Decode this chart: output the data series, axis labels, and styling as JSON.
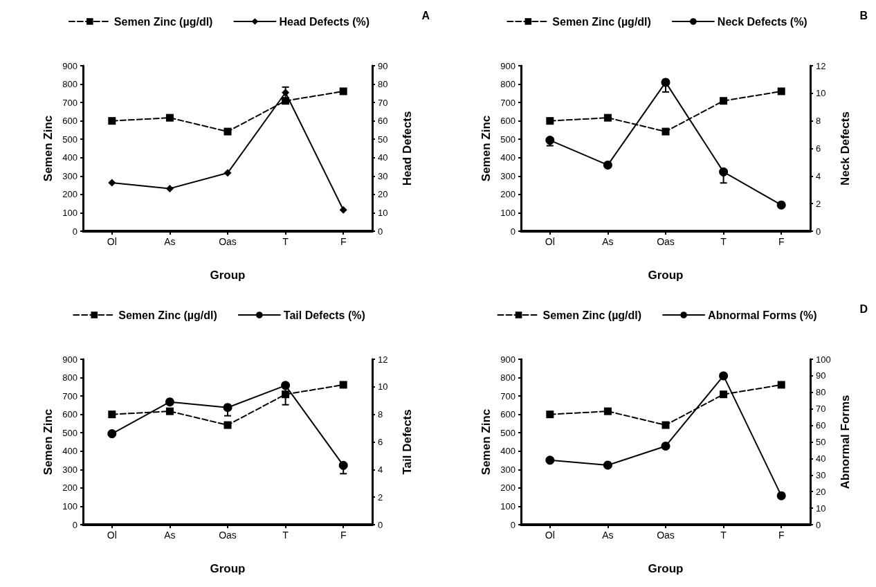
{
  "chart_data": [
    {
      "type": "line",
      "categories": [
        "Ol",
        "As",
        "Oas",
        "T",
        "F"
      ],
      "xlabel": "Group",
      "ylabel": "Semen Zinc",
      "y2label": "Head Defects",
      "annotations": [
        "A"
      ],
      "ylim": [
        0,
        900
      ],
      "yticks": [
        0,
        100,
        200,
        300,
        400,
        500,
        600,
        700,
        800,
        900
      ],
      "y2lim": [
        0,
        90
      ],
      "y2ticks": [
        0,
        10,
        20,
        30,
        40,
        50,
        60,
        70,
        80,
        90
      ],
      "legend": "top",
      "grid": false,
      "series": [
        {
          "name": "Semen Zinc (µg/dl)",
          "color": "#000000",
          "values": [
            600,
            617,
            542,
            709,
            761
          ],
          "marker": "square",
          "line_style": "dashed"
        },
        {
          "name": "Head Defects (%)",
          "color": "#000000",
          "values": [
            26.4,
            23.2,
            31.7,
            75.4,
            11.6
          ],
          "errors": [
            null,
            null,
            null,
            3,
            null
          ],
          "marker": "diamond",
          "line_style": "solid",
          "axis": "y2"
        }
      ]
    },
    {
      "type": "line",
      "categories": [
        "Ol",
        "As",
        "Oas",
        "T",
        "F"
      ],
      "xlabel": "Group",
      "ylabel": "Semen Zinc",
      "y2label": "Neck Defects",
      "annotations": [
        "B"
      ],
      "ylim": [
        0,
        900
      ],
      "yticks": [
        0,
        100,
        200,
        300,
        400,
        500,
        600,
        700,
        800,
        900
      ],
      "y2lim": [
        0,
        12
      ],
      "y2ticks": [
        0,
        2,
        4,
        6,
        8,
        10,
        12
      ],
      "legend": "top",
      "grid": false,
      "series": [
        {
          "name": "Semen Zinc (µg/dl)",
          "color": "#000000",
          "values": [
            600,
            617,
            542,
            709,
            761
          ],
          "marker": "square",
          "line_style": "dashed"
        },
        {
          "name": "Neck Defects (%)",
          "color": "#000000",
          "values": [
            6.6,
            4.8,
            10.8,
            4.3,
            1.9
          ],
          "errors": [
            [
              6.2,
              6.6
            ],
            null,
            [
              10.1,
              10.8
            ],
            [
              3.5,
              4.3
            ],
            null
          ],
          "marker": "circle",
          "line_style": "solid",
          "axis": "y2"
        }
      ]
    },
    {
      "type": "line",
      "categories": [
        "Ol",
        "As",
        "Oas",
        "T",
        "F"
      ],
      "xlabel": "Group",
      "ylabel": "Semen Zinc",
      "y2label": "Tail Defects",
      "ylim": [
        0,
        900
      ],
      "yticks": [
        0,
        100,
        200,
        300,
        400,
        500,
        600,
        700,
        800,
        900
      ],
      "y2lim": [
        0,
        12
      ],
      "y2ticks": [
        0,
        2,
        4,
        6,
        8,
        10,
        12
      ],
      "legend": "top",
      "grid": false,
      "series": [
        {
          "name": "Semen Zinc (µg/dl)",
          "color": "#000000",
          "values": [
            600,
            617,
            542,
            709,
            761
          ],
          "marker": "square",
          "line_style": "dashed"
        },
        {
          "name": "Tail Defects (%)",
          "color": "#000000",
          "values": [
            6.6,
            8.9,
            8.5,
            10.1,
            4.3
          ],
          "errors": [
            null,
            null,
            [
              7.9,
              8.5
            ],
            [
              8.7,
              10.1
            ],
            [
              3.7,
              4.3
            ]
          ],
          "marker": "circle",
          "line_style": "solid",
          "axis": "y2"
        }
      ]
    },
    {
      "type": "line",
      "categories": [
        "Ol",
        "As",
        "Oas",
        "T",
        "F"
      ],
      "xlabel": "Group",
      "ylabel": "Semen Zinc",
      "y2label": "Abnormal Forms",
      "annotations": [
        "D"
      ],
      "ylim": [
        0,
        900
      ],
      "yticks": [
        0,
        100,
        200,
        300,
        400,
        500,
        600,
        700,
        800,
        900
      ],
      "y2lim": [
        0,
        100
      ],
      "y2ticks": [
        0,
        10,
        20,
        30,
        40,
        50,
        60,
        70,
        80,
        90,
        100
      ],
      "legend": "top",
      "grid": false,
      "series": [
        {
          "name": "Semen Zinc (µg/dl)",
          "color": "#000000",
          "values": [
            600,
            617,
            542,
            709,
            761
          ],
          "marker": "square",
          "line_style": "dashed"
        },
        {
          "name": "Abnormal Forms (%)",
          "color": "#000000",
          "values": [
            39,
            36,
            47.5,
            90,
            17.5
          ],
          "marker": "circle",
          "line_style": "solid",
          "axis": "y2"
        }
      ]
    }
  ]
}
